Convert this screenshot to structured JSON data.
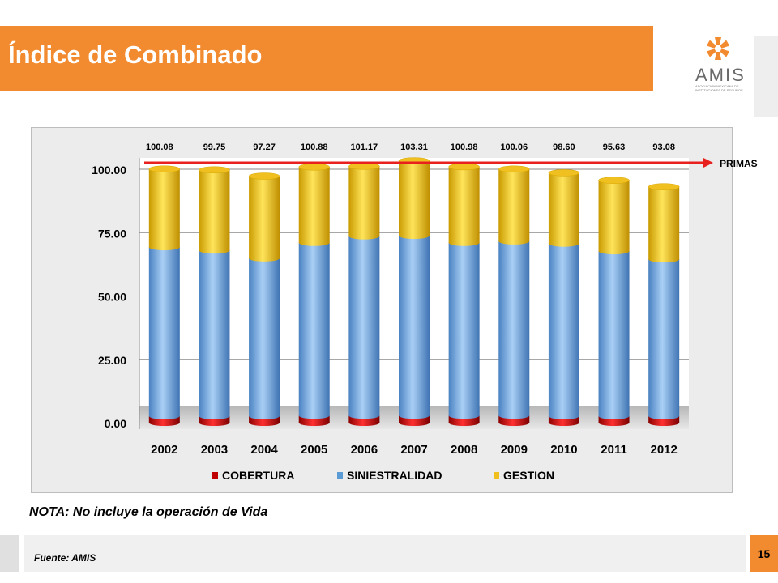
{
  "header": {
    "title": "Índice de Combinado"
  },
  "logo": {
    "name": "AMIS",
    "subtitle": "ASOCIACIÓN MEXICANA DE INSTITUCIONES DE SEGUROS"
  },
  "note": "NOTA: No incluye la operación de Vida",
  "footer": {
    "source": "Fuente: AMIS",
    "page_number": "15"
  },
  "colors": {
    "accent": "#f28b30",
    "cobertura": "#c00000",
    "siniestralidad": "#5b9bd5",
    "gestion": "#f0c020",
    "primas_line": "#e8201e"
  },
  "chart_data": {
    "type": "bar",
    "stacked": true,
    "categories": [
      "2002",
      "2003",
      "2004",
      "2005",
      "2006",
      "2007",
      "2008",
      "2009",
      "2010",
      "2011",
      "2012"
    ],
    "series": [
      {
        "name": "COBERTURA",
        "values": [
          2.6,
          2.6,
          2.6,
          2.8,
          2.8,
          2.8,
          2.8,
          2.8,
          2.6,
          2.6,
          2.6
        ]
      },
      {
        "name": "SINIESTRALIDAD",
        "values": [
          66.7,
          65.4,
          62.3,
          68.2,
          70.8,
          71.0,
          68.2,
          68.8,
          68.1,
          65.1,
          61.9
        ]
      },
      {
        "name": "GESTION",
        "values": [
          30.78,
          31.75,
          32.37,
          29.88,
          27.57,
          29.51,
          29.98,
          28.46,
          27.9,
          27.93,
          28.58
        ]
      }
    ],
    "totals": [
      "100.08",
      "99.75",
      "97.27",
      "100.88",
      "101.17",
      "103.31",
      "100.98",
      "100.06",
      "98.60",
      "95.63",
      "93.08"
    ],
    "yticks": [
      "0.00",
      "25.00",
      "50.00",
      "75.00",
      "100.00"
    ],
    "ylim": [
      0,
      100
    ],
    "reference_line": {
      "label": "PRIMAS",
      "value": 100
    },
    "legend": {
      "placement": "bottom",
      "entries": [
        "COBERTURA",
        "SINIESTRALIDAD",
        "GESTION"
      ]
    },
    "grid": true
  }
}
